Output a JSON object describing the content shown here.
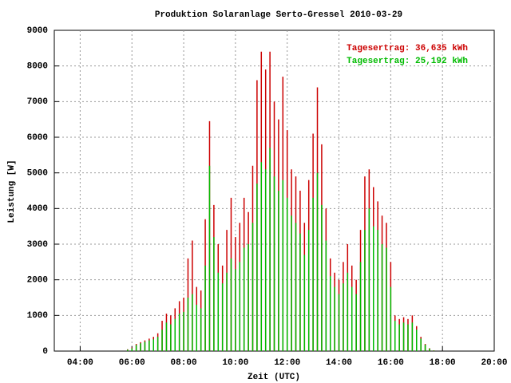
{
  "chart_data": {
    "type": "impulse",
    "title": "Produktion Solaranlage Serto-Gressel 2010-03-29",
    "x_label": "Zeit (UTC)",
    "y_label": "Leistung [W]",
    "annotations": [
      {
        "text": "Tagesertrag: 36,635 kWh",
        "color": "#cc0000"
      },
      {
        "text": "Tagesertrag: 25,192 kWh",
        "color": "#00bb00"
      }
    ],
    "x": [
      "05:50",
      "06:00",
      "06:10",
      "06:20",
      "06:30",
      "06:40",
      "06:50",
      "07:00",
      "07:10",
      "07:20",
      "07:30",
      "07:40",
      "07:50",
      "08:00",
      "08:10",
      "08:20",
      "08:30",
      "08:40",
      "08:50",
      "09:00",
      "09:10",
      "09:20",
      "09:30",
      "09:40",
      "09:50",
      "10:00",
      "10:10",
      "10:20",
      "10:30",
      "10:40",
      "10:50",
      "11:00",
      "11:10",
      "11:20",
      "11:30",
      "11:40",
      "11:50",
      "12:00",
      "12:10",
      "12:20",
      "12:30",
      "12:40",
      "12:50",
      "13:00",
      "13:10",
      "13:20",
      "13:30",
      "13:40",
      "13:50",
      "14:00",
      "14:10",
      "14:20",
      "14:30",
      "14:40",
      "14:50",
      "15:00",
      "15:10",
      "15:20",
      "15:30",
      "15:40",
      "15:50",
      "16:00",
      "16:10",
      "16:20",
      "16:30",
      "16:40",
      "16:50",
      "17:00",
      "17:10",
      "17:20",
      "17:30",
      "17:40"
    ],
    "series": [
      {
        "color": "#cc0000",
        "values": [
          50,
          100,
          200,
          250,
          300,
          350,
          400,
          500,
          850,
          1050,
          1000,
          1200,
          1400,
          1500,
          2600,
          3100,
          1800,
          1700,
          3700,
          6450,
          4100,
          3000,
          2400,
          3400,
          4300,
          3200,
          3600,
          4300,
          3900,
          5200,
          7600,
          8400,
          7900,
          8400,
          7000,
          6500,
          7700,
          6200,
          5100,
          4900,
          4500,
          3600,
          4800,
          6100,
          7400,
          5800,
          4000,
          2600,
          2200,
          2000,
          2500,
          3000,
          2400,
          2000,
          3400,
          4900,
          5100,
          4600,
          4200,
          3800,
          3600,
          2500,
          1000,
          900,
          950,
          900,
          1000,
          700,
          400,
          200,
          80,
          20
        ]
      },
      {
        "color": "#00bb00",
        "values": [
          40,
          80,
          170,
          220,
          260,
          300,
          330,
          400,
          600,
          800,
          750,
          900,
          1050,
          1100,
          1500,
          1600,
          1300,
          1200,
          2400,
          5200,
          3200,
          2200,
          1900,
          2200,
          2600,
          2300,
          2500,
          2900,
          3000,
          3600,
          4700,
          5300,
          5100,
          5700,
          4900,
          4500,
          4800,
          4300,
          3800,
          3600,
          3300,
          2700,
          3400,
          4300,
          5000,
          4100,
          3100,
          2100,
          1800,
          1600,
          1900,
          2200,
          1800,
          1600,
          2500,
          3400,
          4000,
          3500,
          3400,
          3000,
          2900,
          1800,
          850,
          750,
          800,
          750,
          800,
          600,
          350,
          180,
          70,
          15
        ]
      }
    ],
    "xlim": [
      "03:00",
      "20:00"
    ],
    "xticks": [
      "04:00",
      "06:00",
      "08:00",
      "10:00",
      "12:00",
      "14:00",
      "16:00",
      "18:00",
      "20:00"
    ],
    "ylim": [
      0,
      9000
    ],
    "yticks": [
      0,
      1000,
      2000,
      3000,
      4000,
      5000,
      6000,
      7000,
      8000,
      9000
    ],
    "grid": true
  }
}
